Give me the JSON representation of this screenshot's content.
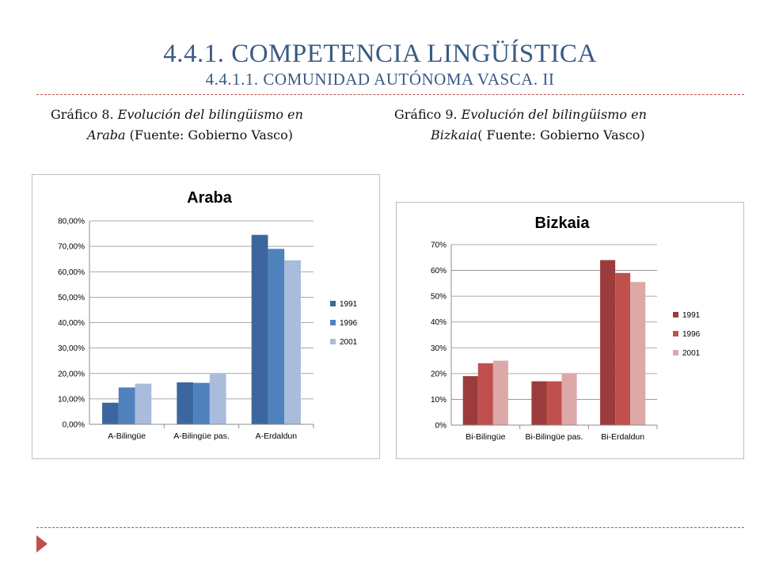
{
  "header": {
    "title": "4.4.1. COMPETENCIA LINGÜÍSTICA",
    "subtitle": "4.4.1.1. COMUNIDAD AUTÓNOMA VASCA. II"
  },
  "captions": {
    "left": {
      "prefix": "Gráfico 8. ",
      "italic1": "Evolución del bilingüismo en",
      "italic2": "Araba",
      "suffix": " (Fuente: Gobierno Vasco)"
    },
    "right": {
      "prefix": "Gráfico 9. ",
      "italic1": "Evolución del bilingüismo en",
      "italic2": "Bizkaia",
      "suffix": "( Fuente: Gobierno Vasco)"
    }
  },
  "colors": {
    "accent": "#c0504d",
    "title": "#3a5a84"
  },
  "chart_data": [
    {
      "type": "bar",
      "title": "Araba",
      "categories": [
        "A-Bilingüe",
        "A-Bilingüe pas.",
        "A-Erdaldun"
      ],
      "series": [
        {
          "name": "1991",
          "values": [
            0.085,
            0.165,
            0.745
          ],
          "color": "#3b679e"
        },
        {
          "name": "1996",
          "values": [
            0.145,
            0.163,
            0.69
          ],
          "color": "#4f81bd"
        },
        {
          "name": "2001",
          "values": [
            0.16,
            0.2,
            0.645
          ],
          "color": "#a9bcdc"
        }
      ],
      "ylim": [
        0,
        0.8
      ],
      "yticks": [
        "0,00%",
        "10,00%",
        "20,00%",
        "30,00%",
        "40,00%",
        "50,00%",
        "60,00%",
        "70,00%",
        "80,00%"
      ],
      "grid": true,
      "legend": "right"
    },
    {
      "type": "bar",
      "title": "Bizkaia",
      "categories": [
        "Bi-Bilingüe",
        "Bi-Bilingüe pas.",
        "Bi-Erdaldun"
      ],
      "series": [
        {
          "name": "1991",
          "values": [
            0.19,
            0.17,
            0.64
          ],
          "color": "#9c3b3b"
        },
        {
          "name": "1996",
          "values": [
            0.24,
            0.17,
            0.59
          ],
          "color": "#c0504d"
        },
        {
          "name": "2001",
          "values": [
            0.25,
            0.2,
            0.555
          ],
          "color": "#dca8a8"
        }
      ],
      "ylim": [
        0,
        0.7
      ],
      "yticks": [
        "0%",
        "10%",
        "20%",
        "30%",
        "40%",
        "50%",
        "60%",
        "70%"
      ],
      "grid": true,
      "legend": "right"
    }
  ]
}
